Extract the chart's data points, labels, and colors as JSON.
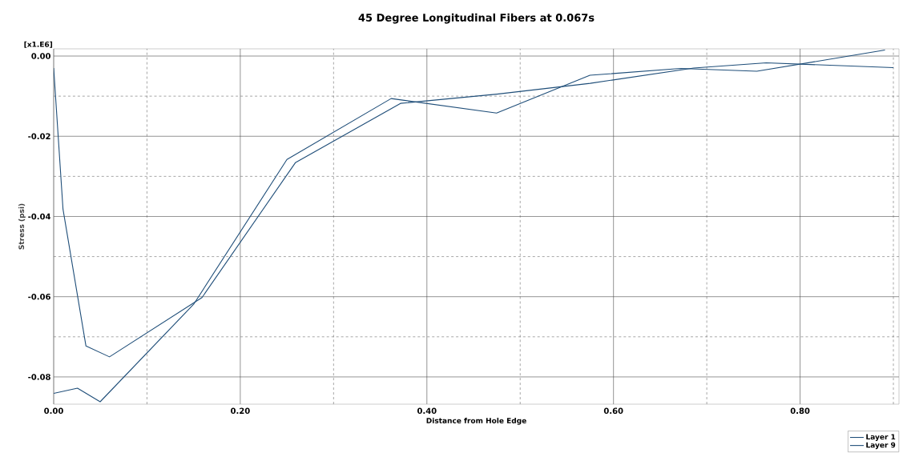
{
  "chart_data": {
    "type": "line",
    "title": "45 Degree Longitudinal Fibers at 0.067s",
    "xlabel": "Distance from Hole Edge",
    "ylabel": "Stress (psi)",
    "annotations": [
      "[x1.E6]"
    ],
    "series": [
      {
        "name": "Layer 1",
        "color": "#1f4e79",
        "x": [
          0,
          0.01,
          0.0346,
          0.0598,
          0.159,
          0.259,
          0.3717,
          0.475,
          0.575,
          0.686,
          0.7637,
          0.9
        ],
        "values": [
          -0.003,
          -0.0382,
          -0.0723,
          -0.075,
          -0.0602,
          -0.0266,
          -0.0118,
          -0.0095,
          -0.0068,
          -0.003,
          -0.0017,
          -0.0029
        ]
      },
      {
        "name": "Layer 9",
        "color": "#1f4e79",
        "x": [
          0,
          0.0255,
          0.0498,
          0.15,
          0.25,
          0.3617,
          0.4747,
          0.5748,
          0.672,
          0.7536,
          0.891
        ],
        "values": [
          -0.0841,
          -0.0828,
          -0.0862,
          -0.0619,
          -0.0258,
          -0.0106,
          -0.0142,
          -0.0048,
          -0.0031,
          -0.0038,
          0.0015
        ]
      }
    ],
    "xlim": [
      0,
      0.906
    ],
    "ylim": [
      -0.0868,
      0.0018
    ],
    "xticks": [
      {
        "value": 0,
        "label": "0.00"
      },
      {
        "value": 0.1,
        "label": null
      },
      {
        "value": 0.2,
        "label": "0.20"
      },
      {
        "value": 0.3,
        "label": null
      },
      {
        "value": 0.4,
        "label": "0.40"
      },
      {
        "value": 0.5,
        "label": null
      },
      {
        "value": 0.6,
        "label": "0.60"
      },
      {
        "value": 0.7,
        "label": null
      },
      {
        "value": 0.8,
        "label": "0.80"
      },
      {
        "value": 0.9,
        "label": null
      }
    ],
    "yticks": [
      {
        "value": 0,
        "label": "0.00"
      },
      {
        "value": -0.01,
        "label": null
      },
      {
        "value": -0.02,
        "label": "-0.02"
      },
      {
        "value": -0.03,
        "label": null
      },
      {
        "value": -0.04,
        "label": "-0.04"
      },
      {
        "value": -0.05,
        "label": null
      },
      {
        "value": -0.06,
        "label": "-0.06"
      },
      {
        "value": -0.07,
        "label": null
      },
      {
        "value": -0.08,
        "label": "-0.08"
      }
    ],
    "grid": true,
    "legend": "bottom right",
    "marker": "none",
    "line_style": "solid"
  }
}
